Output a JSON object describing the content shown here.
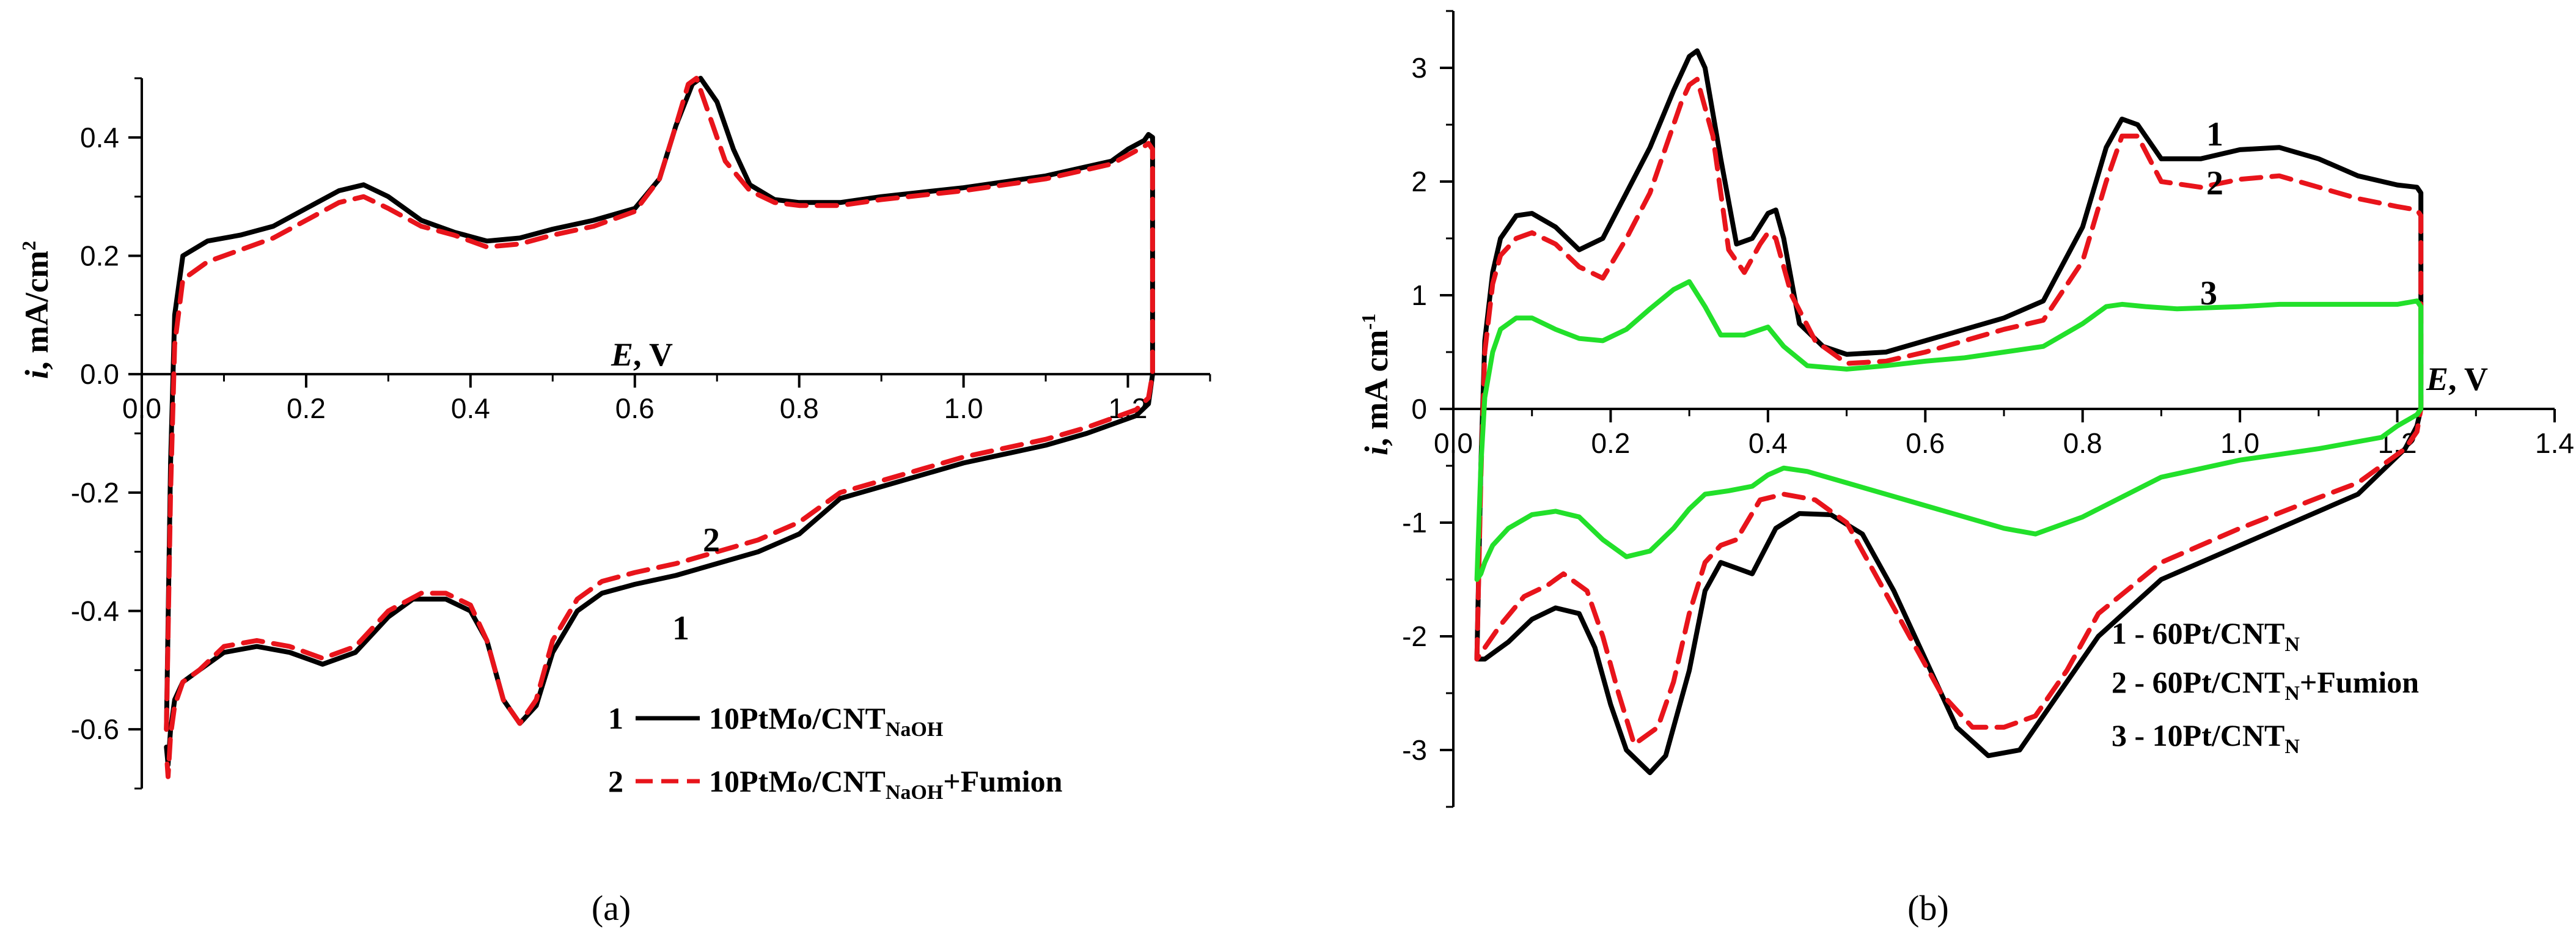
{
  "chart_data": [
    {
      "type": "line",
      "panel_label": "(a)",
      "xlabel_italic": "E",
      "xlabel_rest": ", V",
      "ylabel_italic": "i",
      "ylabel_rest": ", mA/cm",
      "ylabel_sup": "2",
      "xlim": [
        0.0,
        1.3
      ],
      "ylim": [
        -0.7,
        0.5
      ],
      "x_ticks": [
        "0.0",
        "0.2",
        "0.4",
        "0.6",
        "0.8",
        "1.0",
        "1.2"
      ],
      "y_ticks": [
        "-0.6",
        "-0.4",
        "-0.2",
        "0.0",
        "0.2",
        "0.4"
      ],
      "curve_labels": [
        "2",
        "1"
      ],
      "legend": [
        {
          "num": "1",
          "name": "10PtMo/CNT",
          "sub": "NaOH",
          "suffix": ""
        },
        {
          "num": "2",
          "name": "10PtMo/CNT",
          "sub": "NaOH",
          "suffix": "+Fumion"
        }
      ],
      "series": [
        {
          "name": "1",
          "color": "#000000",
          "dash": "solid",
          "x": [
            0.03,
            0.035,
            0.04,
            0.05,
            0.08,
            0.12,
            0.16,
            0.2,
            0.24,
            0.27,
            0.3,
            0.34,
            0.38,
            0.42,
            0.46,
            0.5,
            0.55,
            0.6,
            0.63,
            0.65,
            0.67,
            0.68,
            0.7,
            0.72,
            0.74,
            0.77,
            0.8,
            0.85,
            0.9,
            1.0,
            1.1,
            1.18,
            1.2,
            1.22,
            1.225,
            1.23,
            1.23,
            1.225,
            1.21,
            1.19,
            1.15,
            1.1,
            1.0,
            0.9,
            0.85,
            0.8,
            0.75,
            0.7,
            0.65,
            0.6,
            0.56,
            0.53,
            0.5,
            0.48,
            0.46,
            0.44,
            0.42,
            0.4,
            0.37,
            0.33,
            0.3,
            0.26,
            0.22,
            0.18,
            0.14,
            0.1,
            0.07,
            0.05,
            0.04,
            0.035,
            0.032,
            0.03
          ],
          "y": [
            -0.6,
            -0.15,
            0.1,
            0.2,
            0.225,
            0.235,
            0.25,
            0.28,
            0.31,
            0.32,
            0.3,
            0.26,
            0.24,
            0.225,
            0.23,
            0.245,
            0.26,
            0.28,
            0.33,
            0.42,
            0.49,
            0.5,
            0.46,
            0.38,
            0.32,
            0.295,
            0.29,
            0.29,
            0.3,
            0.315,
            0.335,
            0.36,
            0.38,
            0.395,
            0.405,
            0.4,
            0.0,
            -0.05,
            -0.07,
            -0.08,
            -0.1,
            -0.12,
            -0.15,
            -0.19,
            -0.21,
            -0.27,
            -0.3,
            -0.32,
            -0.34,
            -0.355,
            -0.37,
            -0.4,
            -0.47,
            -0.56,
            -0.59,
            -0.55,
            -0.45,
            -0.4,
            -0.38,
            -0.38,
            -0.41,
            -0.47,
            -0.49,
            -0.47,
            -0.46,
            -0.47,
            -0.5,
            -0.52,
            -0.55,
            -0.6,
            -0.66,
            -0.63
          ]
        },
        {
          "name": "2",
          "color": "#e8141b",
          "dash": "dashed",
          "x": [
            0.03,
            0.035,
            0.04,
            0.05,
            0.08,
            0.12,
            0.16,
            0.2,
            0.24,
            0.27,
            0.3,
            0.34,
            0.38,
            0.42,
            0.46,
            0.5,
            0.55,
            0.6,
            0.63,
            0.65,
            0.665,
            0.675,
            0.69,
            0.71,
            0.74,
            0.77,
            0.8,
            0.85,
            0.9,
            1.0,
            1.1,
            1.18,
            1.2,
            1.22,
            1.225,
            1.23,
            1.23,
            1.225,
            1.21,
            1.19,
            1.15,
            1.1,
            1.0,
            0.9,
            0.85,
            0.8,
            0.75,
            0.7,
            0.65,
            0.6,
            0.56,
            0.53,
            0.5,
            0.48,
            0.46,
            0.44,
            0.42,
            0.4,
            0.37,
            0.34,
            0.3,
            0.26,
            0.22,
            0.18,
            0.14,
            0.1,
            0.07,
            0.05,
            0.04,
            0.035,
            0.032,
            0.03
          ],
          "y": [
            -0.6,
            -0.2,
            0.05,
            0.16,
            0.19,
            0.21,
            0.23,
            0.26,
            0.29,
            0.3,
            0.28,
            0.25,
            0.235,
            0.215,
            0.22,
            0.235,
            0.25,
            0.275,
            0.33,
            0.42,
            0.49,
            0.5,
            0.44,
            0.36,
            0.31,
            0.29,
            0.285,
            0.285,
            0.295,
            0.31,
            0.33,
            0.355,
            0.37,
            0.385,
            0.39,
            0.38,
            0.0,
            -0.04,
            -0.06,
            -0.07,
            -0.09,
            -0.11,
            -0.14,
            -0.18,
            -0.2,
            -0.25,
            -0.28,
            -0.3,
            -0.32,
            -0.335,
            -0.35,
            -0.38,
            -0.45,
            -0.55,
            -0.59,
            -0.55,
            -0.45,
            -0.39,
            -0.37,
            -0.37,
            -0.4,
            -0.46,
            -0.48,
            -0.46,
            -0.45,
            -0.46,
            -0.5,
            -0.52,
            -0.56,
            -0.61,
            -0.68,
            -0.64
          ]
        }
      ]
    },
    {
      "type": "line",
      "panel_label": "(b)",
      "xlabel_italic": "E",
      "xlabel_rest": ", V",
      "ylabel_italic": "i",
      "ylabel_rest": ", mA cm",
      "ylabel_sup": "-1",
      "xlim": [
        0.0,
        1.4
      ],
      "ylim": [
        -3.5,
        3.5
      ],
      "x_ticks": [
        "0.0",
        "0.2",
        "0.4",
        "0.6",
        "0.8",
        "1.0",
        "1.2",
        "1.4"
      ],
      "y_ticks": [
        "-3",
        "-2",
        "-1",
        "0",
        "1",
        "2",
        "3"
      ],
      "curve_labels": [
        "1",
        "2",
        "3"
      ],
      "legend": [
        {
          "num": "1",
          "name": "60Pt/CNT",
          "sub": "N",
          "suffix": ""
        },
        {
          "num": "2",
          "name": "60Pt/CNT",
          "sub": "N",
          "suffix": "+Fumion"
        },
        {
          "num": "3",
          "name": "10Pt/CNT",
          "sub": "N",
          "suffix": ""
        }
      ],
      "series": [
        {
          "name": "1",
          "color": "#000000",
          "dash": "solid",
          "x": [
            0.03,
            0.035,
            0.04,
            0.05,
            0.06,
            0.08,
            0.1,
            0.13,
            0.16,
            0.19,
            0.22,
            0.25,
            0.28,
            0.3,
            0.31,
            0.32,
            0.34,
            0.36,
            0.38,
            0.4,
            0.41,
            0.42,
            0.44,
            0.47,
            0.5,
            0.55,
            0.6,
            0.65,
            0.7,
            0.75,
            0.8,
            0.83,
            0.85,
            0.87,
            0.9,
            0.95,
            1.0,
            1.05,
            1.1,
            1.15,
            1.2,
            1.225,
            1.23,
            1.23,
            1.225,
            1.21,
            1.18,
            1.15,
            1.1,
            1.0,
            0.9,
            0.82,
            0.76,
            0.72,
            0.68,
            0.64,
            0.6,
            0.56,
            0.52,
            0.48,
            0.44,
            0.41,
            0.38,
            0.36,
            0.34,
            0.32,
            0.3,
            0.27,
            0.25,
            0.22,
            0.2,
            0.18,
            0.16,
            0.13,
            0.1,
            0.07,
            0.05,
            0.04,
            0.035,
            0.03
          ],
          "y": [
            -2.2,
            -0.5,
            0.6,
            1.2,
            1.5,
            1.7,
            1.72,
            1.6,
            1.4,
            1.5,
            1.9,
            2.3,
            2.8,
            3.1,
            3.15,
            3.0,
            2.2,
            1.45,
            1.5,
            1.72,
            1.75,
            1.5,
            0.75,
            0.55,
            0.48,
            0.5,
            0.6,
            0.7,
            0.8,
            0.95,
            1.6,
            2.3,
            2.55,
            2.5,
            2.2,
            2.2,
            2.28,
            2.3,
            2.2,
            2.05,
            1.97,
            1.95,
            1.9,
            0.0,
            -0.15,
            -0.35,
            -0.55,
            -0.75,
            -0.9,
            -1.2,
            -1.5,
            -2.0,
            -2.6,
            -3.0,
            -3.05,
            -2.8,
            -2.2,
            -1.6,
            -1.1,
            -0.93,
            -0.92,
            -1.05,
            -1.45,
            -1.4,
            -1.35,
            -1.6,
            -2.3,
            -3.05,
            -3.2,
            -3.0,
            -2.6,
            -2.1,
            -1.8,
            -1.75,
            -1.85,
            -2.05,
            -2.15,
            -2.2,
            -2.2,
            -2.2
          ]
        },
        {
          "name": "2",
          "color": "#e8141b",
          "dash": "dashed",
          "x": [
            0.03,
            0.035,
            0.04,
            0.05,
            0.06,
            0.08,
            0.1,
            0.13,
            0.16,
            0.19,
            0.22,
            0.25,
            0.27,
            0.29,
            0.3,
            0.31,
            0.33,
            0.35,
            0.37,
            0.39,
            0.4,
            0.41,
            0.43,
            0.46,
            0.5,
            0.55,
            0.6,
            0.65,
            0.7,
            0.75,
            0.8,
            0.83,
            0.85,
            0.87,
            0.9,
            0.95,
            1.0,
            1.05,
            1.1,
            1.15,
            1.2,
            1.225,
            1.23,
            1.23,
            1.225,
            1.21,
            1.18,
            1.15,
            1.1,
            1.0,
            0.9,
            0.82,
            0.78,
            0.74,
            0.7,
            0.66,
            0.62,
            0.58,
            0.54,
            0.5,
            0.46,
            0.42,
            0.39,
            0.36,
            0.34,
            0.32,
            0.3,
            0.28,
            0.26,
            0.23,
            0.21,
            0.19,
            0.17,
            0.14,
            0.12,
            0.09,
            0.06,
            0.05,
            0.04,
            0.035,
            0.03
          ],
          "y": [
            -2.2,
            -0.6,
            0.5,
            1.1,
            1.35,
            1.5,
            1.55,
            1.45,
            1.25,
            1.15,
            1.5,
            1.9,
            2.3,
            2.7,
            2.85,
            2.9,
            2.4,
            1.4,
            1.2,
            1.45,
            1.55,
            1.5,
            1.0,
            0.6,
            0.4,
            0.42,
            0.5,
            0.6,
            0.7,
            0.78,
            1.3,
            2.0,
            2.4,
            2.4,
            2.0,
            1.95,
            2.02,
            2.05,
            1.95,
            1.85,
            1.78,
            1.75,
            1.7,
            0.0,
            -0.2,
            -0.35,
            -0.5,
            -0.65,
            -0.78,
            -1.05,
            -1.35,
            -1.8,
            -2.3,
            -2.7,
            -2.8,
            -2.8,
            -2.5,
            -2.0,
            -1.5,
            -1.0,
            -0.8,
            -0.75,
            -0.8,
            -1.15,
            -1.2,
            -1.35,
            -1.8,
            -2.4,
            -2.8,
            -2.95,
            -2.5,
            -2.0,
            -1.6,
            -1.45,
            -1.55,
            -1.65,
            -1.9,
            -2.0,
            -2.1,
            -2.15,
            -2.2
          ]
        },
        {
          "name": "3",
          "color": "#22e02a",
          "dash": "solid",
          "x": [
            0.03,
            0.035,
            0.04,
            0.05,
            0.06,
            0.08,
            0.1,
            0.13,
            0.16,
            0.19,
            0.22,
            0.25,
            0.28,
            0.3,
            0.32,
            0.34,
            0.37,
            0.4,
            0.42,
            0.45,
            0.5,
            0.55,
            0.6,
            0.65,
            0.7,
            0.75,
            0.8,
            0.83,
            0.85,
            0.88,
            0.92,
            1.0,
            1.05,
            1.1,
            1.15,
            1.2,
            1.225,
            1.23,
            1.23,
            1.225,
            1.2,
            1.18,
            1.1,
            1.0,
            0.9,
            0.8,
            0.74,
            0.7,
            0.65,
            0.6,
            0.55,
            0.5,
            0.45,
            0.42,
            0.4,
            0.38,
            0.35,
            0.32,
            0.3,
            0.28,
            0.25,
            0.22,
            0.19,
            0.16,
            0.13,
            0.1,
            0.07,
            0.05,
            0.04,
            0.035,
            0.03
          ],
          "y": [
            -1.5,
            -0.5,
            0.1,
            0.5,
            0.7,
            0.8,
            0.8,
            0.7,
            0.62,
            0.6,
            0.7,
            0.88,
            1.05,
            1.12,
            0.9,
            0.65,
            0.65,
            0.72,
            0.55,
            0.38,
            0.35,
            0.38,
            0.42,
            0.45,
            0.5,
            0.55,
            0.75,
            0.9,
            0.92,
            0.9,
            0.88,
            0.9,
            0.92,
            0.92,
            0.92,
            0.92,
            0.95,
            0.9,
            0.0,
            -0.05,
            -0.15,
            -0.25,
            -0.35,
            -0.45,
            -0.6,
            -0.95,
            -1.1,
            -1.05,
            -0.95,
            -0.85,
            -0.75,
            -0.65,
            -0.55,
            -0.52,
            -0.58,
            -0.68,
            -0.72,
            -0.75,
            -0.88,
            -1.05,
            -1.25,
            -1.3,
            -1.15,
            -0.95,
            -0.9,
            -0.93,
            -1.05,
            -1.2,
            -1.35,
            -1.45,
            -1.5
          ]
        }
      ]
    }
  ]
}
